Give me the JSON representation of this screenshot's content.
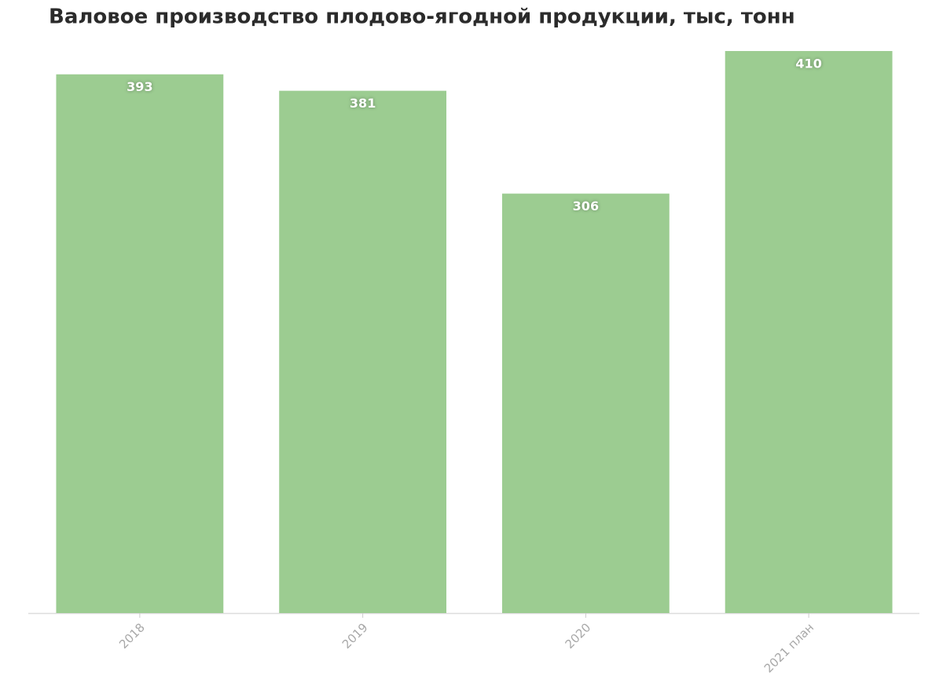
{
  "chart_data": {
    "type": "bar",
    "title": "Валовое производство плодово-ягодной продукции, тыс, тонн",
    "categories": [
      "2018",
      "2019",
      "2020",
      "2021 план"
    ],
    "values": [
      393,
      381,
      306,
      410
    ],
    "color": "#9ccc91",
    "ylim": [
      0,
      410
    ]
  }
}
